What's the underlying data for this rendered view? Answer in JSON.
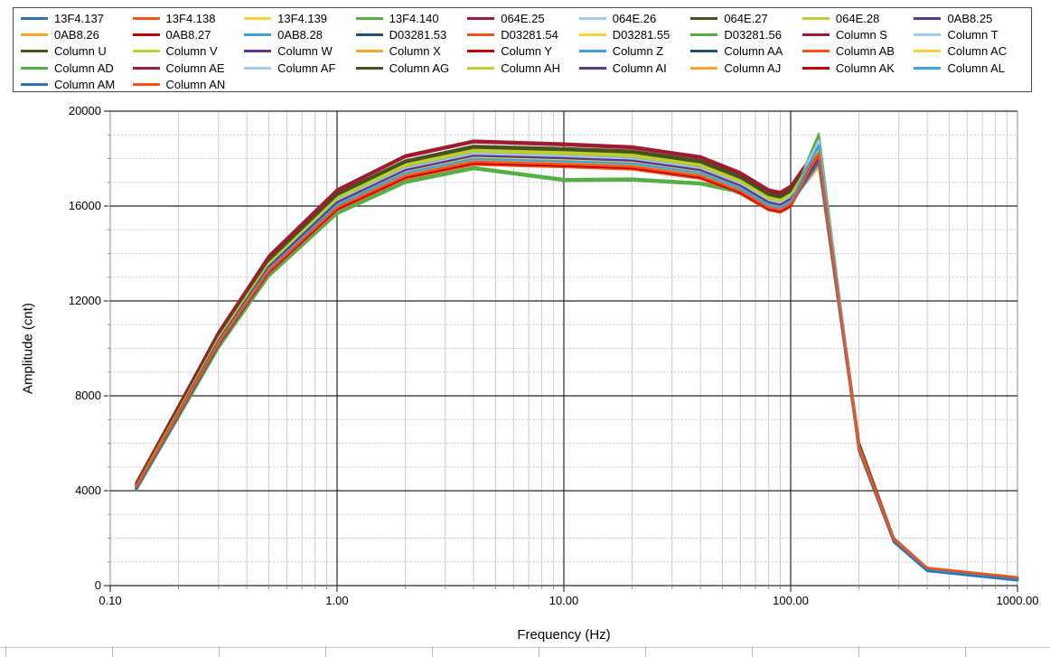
{
  "chart_data": {
    "type": "line",
    "title": "",
    "xlabel": "Frequency (Hz)",
    "ylabel": "Amplitude (cnt)",
    "x_scale": "log",
    "xlim": [
      0.1,
      1000
    ],
    "ylim": [
      0,
      20000
    ],
    "x_tick_labels": [
      "0.10",
      "1.00",
      "10.00",
      "100.00",
      "1000.00"
    ],
    "x_tick_values": [
      0.1,
      1,
      10,
      100,
      1000
    ],
    "y_tick_labels": [
      "0",
      "4000",
      "8000",
      "12000",
      "16000",
      "20000"
    ],
    "y_tick_values": [
      0,
      4000,
      8000,
      12000,
      16000,
      20000
    ],
    "y_minor_step": 1000,
    "grid": "major and minor, log minor verticals",
    "legend_position": "top",
    "x": [
      0.13,
      0.2,
      0.3,
      0.5,
      1,
      2,
      4,
      10,
      20,
      40,
      60,
      80,
      90,
      100,
      133,
      200,
      285,
      400,
      1000
    ],
    "group_values": {
      "blue": [
        4120,
        7250,
        10230,
        13305,
        15990,
        17330,
        17925,
        17825,
        17725,
        17330,
        16680,
        15985,
        15890,
        16135,
        17900,
        5760,
        1887,
        675,
        278
      ],
      "orangered": [
        4088,
        7190,
        10145,
        13200,
        15860,
        17190,
        17780,
        17680,
        17580,
        17190,
        16548,
        15860,
        15760,
        16005,
        18150,
        5713,
        1872,
        670,
        276
      ],
      "yellow": [
        4160,
        7315,
        10320,
        13425,
        16130,
        17485,
        18085,
        17985,
        17885,
        17485,
        16835,
        16130,
        16030,
        16285,
        17750,
        5810,
        1904,
        681,
        281
      ],
      "green": [
        4046,
        7118,
        10043,
        13065,
        15700,
        17015,
        17600,
        17100,
        17120,
        16950,
        16600,
        16050,
        15950,
        16200,
        19000,
        5713,
        1900,
        700,
        292
      ],
      "darkred": [
        4295,
        7555,
        10660,
        13870,
        16660,
        18100,
        18720,
        18600,
        18475,
        18060,
        17390,
        16665,
        16560,
        16820,
        18500,
        6000,
        1965,
        705,
        290
      ],
      "lightblue": [
        4190,
        7375,
        10405,
        13535,
        16260,
        17625,
        18230,
        18130,
        18030,
        17625,
        16970,
        16260,
        16160,
        16415,
        18800,
        5860,
        1920,
        687,
        283
      ],
      "darkolive": [
        4255,
        7485,
        10560,
        13735,
        16500,
        17885,
        18500,
        18400,
        18295,
        17885,
        17220,
        16505,
        16400,
        16655,
        18400,
        5945,
        1950,
        697,
        287
      ],
      "yellowgreen": [
        4215,
        7415,
        10465,
        13615,
        16360,
        17730,
        18340,
        18240,
        18135,
        17730,
        17070,
        16360,
        16255,
        16510,
        18450,
        5895,
        1930,
        691,
        284
      ],
      "purple": [
        4175,
        7345,
        10360,
        13480,
        16200,
        17555,
        18160,
        18060,
        17955,
        17555,
        16900,
        16195,
        16095,
        16350,
        18000,
        5835,
        1910,
        684,
        282
      ],
      "orange": [
        4135,
        7270,
        10260,
        13345,
        16035,
        17380,
        17980,
        17880,
        17780,
        17380,
        16733,
        16035,
        15935,
        16185,
        17700,
        5777,
        1892,
        677,
        279
      ],
      "red": [
        4100,
        7212,
        10176,
        13240,
        15905,
        17240,
        17835,
        17735,
        17635,
        17240,
        16600,
        15907,
        15810,
        16055,
        18250,
        5730,
        1877,
        672,
        277
      ],
      "brightblue": [
        4145,
        7293,
        10290,
        13385,
        16085,
        17433,
        18030,
        17930,
        17830,
        17433,
        16783,
        16084,
        15984,
        16234,
        18600,
        5794,
        1898,
        679,
        280
      ],
      "navy": [
        4113,
        7235,
        10207,
        13280,
        15955,
        17295,
        17890,
        17790,
        17690,
        17295,
        16650,
        15955,
        15855,
        16105,
        17950,
        5748,
        1883,
        674,
        277
      ]
    },
    "series": [
      {
        "name": "13F4.137",
        "color": "#2E74B5",
        "group": "blue",
        "offset": 0
      },
      {
        "name": "13F4.138",
        "color": "#F9511C",
        "group": "orangered",
        "offset": 0
      },
      {
        "name": "13F4.139",
        "color": "#FFD13B",
        "group": "yellow",
        "offset": 0
      },
      {
        "name": "13F4.140",
        "color": "#56AE46",
        "group": "green",
        "offset": 0
      },
      {
        "name": "064E.25",
        "color": "#9E1B32",
        "group": "darkred",
        "offset": 0
      },
      {
        "name": "064E.26",
        "color": "#A6CBEC",
        "group": "lightblue",
        "offset": 0
      },
      {
        "name": "064E.27",
        "color": "#45521D",
        "group": "darkolive",
        "offset": 0
      },
      {
        "name": "064E.28",
        "color": "#BCCF2E",
        "group": "yellowgreen",
        "offset": 0
      },
      {
        "name": "0AB8.25",
        "color": "#5B3A8C",
        "group": "purple",
        "offset": 0
      },
      {
        "name": "0AB8.26",
        "color": "#FCA22D",
        "group": "orange",
        "offset": 0
      },
      {
        "name": "0AB8.27",
        "color": "#C00000",
        "group": "red",
        "offset": 0
      },
      {
        "name": "0AB8.28",
        "color": "#39A3DC",
        "group": "brightblue",
        "offset": 0
      },
      {
        "name": "D03281.53",
        "color": "#1F4E79",
        "group": "navy",
        "offset": 0
      },
      {
        "name": "D03281.54",
        "color": "#F9511C",
        "group": "orangered",
        "offset": 40
      },
      {
        "name": "D03281.55",
        "color": "#FFD13B",
        "group": "yellow",
        "offset": 40
      },
      {
        "name": "D03281.56",
        "color": "#56AE46",
        "group": "green",
        "offset": 40
      },
      {
        "name": "Column S",
        "color": "#9E1B32",
        "group": "darkred",
        "offset": 40
      },
      {
        "name": "Column T",
        "color": "#A6CBEC",
        "group": "lightblue",
        "offset": 40
      },
      {
        "name": "Column U",
        "color": "#45521D",
        "group": "darkolive",
        "offset": 40
      },
      {
        "name": "Column V",
        "color": "#BCCF2E",
        "group": "yellowgreen",
        "offset": 40
      },
      {
        "name": "Column W",
        "color": "#5B3A8C",
        "group": "purple",
        "offset": 40
      },
      {
        "name": "Column X",
        "color": "#FCA22D",
        "group": "orange",
        "offset": 40
      },
      {
        "name": "Column Y",
        "color": "#C00000",
        "group": "red",
        "offset": 40
      },
      {
        "name": "Column Z",
        "color": "#39A3DC",
        "group": "brightblue",
        "offset": 40
      },
      {
        "name": "Column AA",
        "color": "#1F4E79",
        "group": "navy",
        "offset": 40
      },
      {
        "name": "Column AB",
        "color": "#F9511C",
        "group": "orangered",
        "offset": -40
      },
      {
        "name": "Column AC",
        "color": "#FFD13B",
        "group": "yellow",
        "offset": -40
      },
      {
        "name": "Column AD",
        "color": "#56AE46",
        "group": "green",
        "offset": -40
      },
      {
        "name": "Column AE",
        "color": "#9E1B32",
        "group": "darkred",
        "offset": -40
      },
      {
        "name": "Column AF",
        "color": "#A6CBEC",
        "group": "lightblue",
        "offset": -40
      },
      {
        "name": "Column AG",
        "color": "#45521D",
        "group": "darkolive",
        "offset": -40
      },
      {
        "name": "Column AH",
        "color": "#BCCF2E",
        "group": "yellowgreen",
        "offset": -40
      },
      {
        "name": "Column AI",
        "color": "#5B3A8C",
        "group": "purple",
        "offset": -40
      },
      {
        "name": "Column AJ",
        "color": "#FCA22D",
        "group": "orange",
        "offset": -40
      },
      {
        "name": "Column AK",
        "color": "#C00000",
        "group": "red",
        "offset": -40
      },
      {
        "name": "Column AL",
        "color": "#39A3DC",
        "group": "brightblue",
        "offset": -40
      },
      {
        "name": "Column AM",
        "color": "#2E74B5",
        "group": "blue",
        "offset": -60
      },
      {
        "name": "Column AN",
        "color": "#F9511C",
        "group": "orangered",
        "offset": 80
      }
    ]
  }
}
